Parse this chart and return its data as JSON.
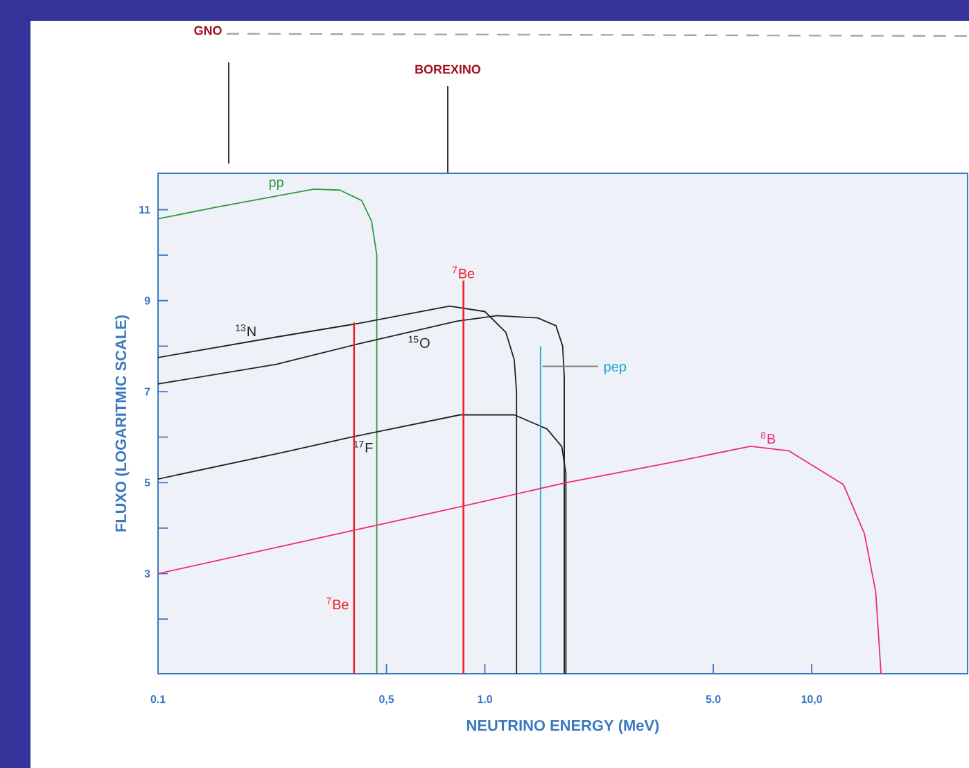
{
  "chart_data": {
    "type": "line",
    "xlabel": "NEUTRINO  ENERGY  (MeV)",
    "ylabel": "FLUXO  (LOGARITMIC  SCALE)",
    "log": "x",
    "xlim": [
      0.1,
      30
    ],
    "ylim": [
      0.8,
      11.8
    ],
    "xticks": [
      {
        "value": 0.1,
        "label": "0.1"
      },
      {
        "value": 0.5,
        "label": "0,5"
      },
      {
        "value": 1,
        "label": "1.0"
      },
      {
        "value": 5,
        "label": "5.0"
      },
      {
        "value": 10,
        "label": "10,0"
      }
    ],
    "yticks": [
      {
        "value": 2,
        "label": null
      },
      3,
      {
        "value": 4,
        "label": null
      },
      5,
      {
        "value": 6,
        "label": null
      },
      7,
      {
        "value": 8,
        "label": null
      },
      9,
      {
        "value": 10,
        "label": null
      },
      11
    ],
    "series": [
      {
        "name": "pp",
        "color": "#2e9a3e",
        "x": [
          0.1,
          0.15,
          0.23,
          0.3,
          0.36,
          0.42,
          0.45,
          0.467,
          0.467
        ],
        "values": [
          10.8,
          11.05,
          11.3,
          11.45,
          11.43,
          11.2,
          10.75,
          10.0,
          0.8
        ]
      },
      {
        "name": "$^{13}$N",
        "color": "#222222",
        "x": [
          0.1,
          0.23,
          0.41,
          0.78,
          1.0,
          1.16,
          1.23,
          1.25,
          1.25
        ],
        "values": [
          7.75,
          8.2,
          8.5,
          8.88,
          8.76,
          8.3,
          7.7,
          7.0,
          0.8
        ]
      },
      {
        "name": "$^{15}$O",
        "color": "#222222",
        "x": [
          0.1,
          0.23,
          0.41,
          0.82,
          1.09,
          1.45,
          1.65,
          1.73,
          1.75,
          1.75
        ],
        "values": [
          7.17,
          7.6,
          8.05,
          8.55,
          8.67,
          8.62,
          8.45,
          8.0,
          7.3,
          0.8
        ]
      },
      {
        "name": "$^{17}$F",
        "color": "#222222",
        "x": [
          0.1,
          0.24,
          0.39,
          0.84,
          1.23,
          1.55,
          1.72,
          1.77,
          1.77
        ],
        "values": [
          5.08,
          5.66,
          6.0,
          6.49,
          6.49,
          6.18,
          5.79,
          5.2,
          0.8
        ]
      },
      {
        "name": "$^{7}$Be",
        "color": "#ee2020",
        "x": [
          0.398,
          0.398
        ],
        "values": [
          0.8,
          8.52
        ]
      },
      {
        "name": "$^{7}$Be",
        "color": "#ee2020",
        "x": [
          0.86,
          0.86
        ],
        "values": [
          0.8,
          9.44
        ]
      },
      {
        "name": "pep",
        "color": "#20a8d0",
        "x": [
          1.48,
          1.48
        ],
        "values": [
          0.8,
          8.0
        ]
      },
      {
        "name": "$^{8}$B",
        "color": "#ee2a7b",
        "x": [
          0.1,
          0.39,
          0.84,
          1.75,
          3.94,
          6.5,
          8.5,
          12.5,
          14.5,
          15.7,
          16.3
        ],
        "values": [
          3.0,
          3.94,
          4.47,
          4.99,
          5.48,
          5.8,
          5.7,
          4.96,
          3.88,
          2.6,
          0.8
        ]
      }
    ],
    "annotations": [
      "GNO",
      "BOREXINO"
    ]
  }
}
